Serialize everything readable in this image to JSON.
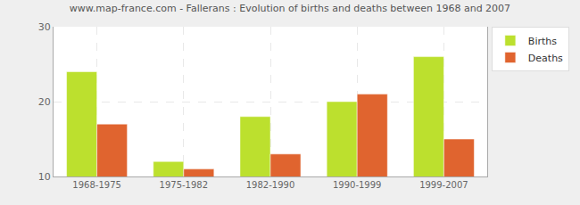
{
  "chart_data": {
    "type": "bar",
    "title": "www.map-france.com - Fallerans : Evolution of births and deaths between 1968 and 2007",
    "categories": [
      "1968-1975",
      "1975-1982",
      "1982-1990",
      "1990-1999",
      "1999-2007"
    ],
    "series": [
      {
        "name": "Births",
        "color": "#bce02e",
        "values": [
          24,
          12,
          18,
          20,
          26
        ]
      },
      {
        "name": "Deaths",
        "color": "#e0642f",
        "values": [
          17,
          11,
          13,
          21,
          15
        ]
      }
    ],
    "ylim": [
      10,
      30
    ],
    "yticks": [
      10,
      20,
      30
    ],
    "grid": true,
    "legend": "upper right"
  }
}
